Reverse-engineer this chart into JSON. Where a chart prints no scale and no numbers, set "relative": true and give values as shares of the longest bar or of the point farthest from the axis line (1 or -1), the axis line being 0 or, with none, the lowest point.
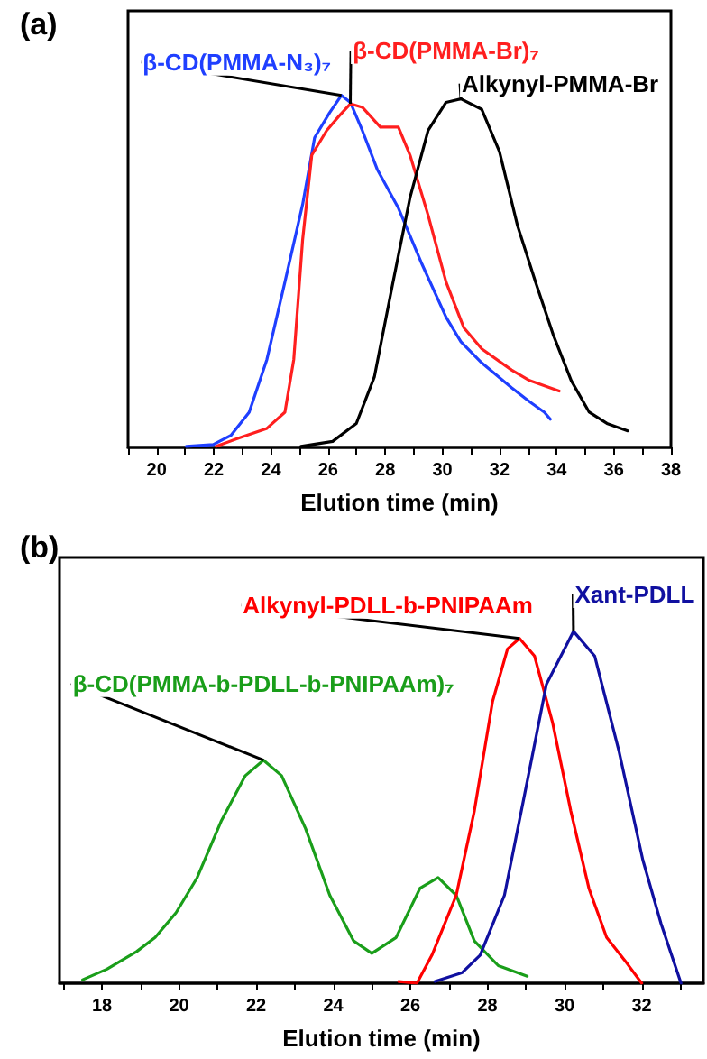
{
  "chart_data": [
    {
      "type": "line",
      "title": "(a)",
      "xlabel": "Elution time (min)",
      "relative": true,
      "xlim": [
        19,
        38
      ],
      "xticks": [
        {
          "value": 19,
          "label": null
        },
        20,
        {
          "value": 21,
          "label": null
        },
        22,
        {
          "value": 23,
          "label": null
        },
        24,
        {
          "value": 25,
          "label": null
        },
        26,
        {
          "value": 27,
          "label": null
        },
        28,
        {
          "value": 29,
          "label": null
        },
        30,
        {
          "value": 31,
          "label": null
        },
        32,
        {
          "value": 33,
          "label": null
        },
        34,
        {
          "value": 35,
          "label": null
        },
        36,
        {
          "value": 37,
          "label": null
        },
        38
      ],
      "grid": false,
      "marker": "none",
      "line_style": "solid",
      "series": [
        {
          "name": "β-CD(PMMA-N₃)₇",
          "color": "#1f3fff",
          "x": [
            21.04,
            21.98,
            22.6,
            23.24,
            23.86,
            24.49,
            25.11,
            25.53,
            26.05,
            26.47,
            26.78,
            27.2,
            27.72,
            28.46,
            29.29,
            30.13,
            30.65,
            31.38,
            32.42,
            33.05,
            33.57,
            33.78
          ],
          "values": [
            0.003,
            0.008,
            0.034,
            0.1,
            0.25,
            0.47,
            0.69,
            0.88,
            0.95,
            1,
            0.98,
            0.9,
            0.79,
            0.68,
            0.52,
            0.37,
            0.3,
            0.24,
            0.17,
            0.13,
            0.1,
            0.08
          ]
        },
        {
          "name": "β-CD(PMMA-Br)₇",
          "color": "#ff1f1f",
          "x": [
            22.09,
            22.82,
            23.86,
            24.49,
            24.8,
            25.11,
            25.43,
            25.95,
            26.37,
            26.78,
            27.2,
            27.83,
            28.46,
            28.87,
            29.5,
            30.13,
            30.75,
            31.38,
            32.42,
            33.05,
            34.09
          ],
          "values": [
            0.003,
            0.025,
            0.054,
            0.1,
            0.25,
            0.59,
            0.83,
            0.9,
            0.94,
            0.976,
            0.966,
            0.91,
            0.91,
            0.83,
            0.66,
            0.47,
            0.34,
            0.28,
            0.22,
            0.19,
            0.16
          ]
        },
        {
          "name": "Alkynyl-PMMA-Br",
          "color": "#000000",
          "x": [
            25.05,
            26.16,
            26.99,
            27.62,
            28.25,
            28.87,
            29.5,
            30.13,
            30.65,
            31.38,
            32.0,
            32.63,
            33.26,
            33.88,
            34.51,
            35.14,
            35.76,
            36.49
          ],
          "values": [
            0.003,
            0.017,
            0.068,
            0.2,
            0.46,
            0.71,
            0.9,
            0.98,
            0.99,
            0.96,
            0.84,
            0.63,
            0.47,
            0.32,
            0.19,
            0.1,
            0.068,
            0.047
          ]
        }
      ]
    },
    {
      "type": "line",
      "title": "(b)",
      "xlabel": "Elution time (min)",
      "relative": true,
      "xlim": [
        16.9,
        33.6
      ],
      "xticks": [
        {
          "value": 17,
          "label": null
        },
        18,
        {
          "value": 19,
          "label": null
        },
        20,
        {
          "value": 21,
          "label": null
        },
        22,
        {
          "value": 23,
          "label": null
        },
        24,
        {
          "value": 25,
          "label": null
        },
        26,
        {
          "value": 27,
          "label": null
        },
        28,
        {
          "value": 29,
          "label": null
        },
        30,
        {
          "value": 31,
          "label": null
        },
        32,
        {
          "value": 33,
          "label": null
        }
      ],
      "grid": false,
      "marker": "none",
      "line_style": "solid",
      "series": [
        {
          "name": "β-CD(PMMA-b-PDLL-b-PNIPAAm)₇",
          "color": "#1a9e1a",
          "x": [
            17.5,
            18.13,
            18.9,
            19.38,
            19.92,
            20.47,
            21.09,
            21.72,
            22.19,
            22.66,
            23.28,
            23.91,
            24.53,
            25.0,
            25.63,
            26.25,
            26.72,
            27.19,
            27.66,
            28.28,
            29.03
          ],
          "values": [
            0.01,
            0.04,
            0.09,
            0.13,
            0.2,
            0.3,
            0.46,
            0.59,
            0.634,
            0.59,
            0.44,
            0.25,
            0.12,
            0.085,
            0.13,
            0.27,
            0.3,
            0.25,
            0.12,
            0.05,
            0.02
          ]
        },
        {
          "name": "Alkynyl-PDLL-b-PNIPAAm",
          "color": "#ff0000",
          "x": [
            25.7,
            26.17,
            26.56,
            27.19,
            27.66,
            28.13,
            28.52,
            28.83,
            29.22,
            29.69,
            30.16,
            30.63,
            31.09,
            31.56,
            32.0
          ],
          "values": [
            0.005,
            0,
            0.08,
            0.25,
            0.49,
            0.8,
            0.95,
            0.98,
            0.93,
            0.74,
            0.49,
            0.27,
            0.13,
            0.065,
            0
          ]
        },
        {
          "name": "Xant-PDLL",
          "color": "#1010a0",
          "x": [
            26.64,
            27.34,
            27.81,
            28.44,
            29.06,
            29.53,
            30.23,
            30.78,
            31.41,
            32.03,
            32.5,
            33.02
          ],
          "values": [
            0.005,
            0.03,
            0.08,
            0.25,
            0.59,
            0.85,
            1,
            0.93,
            0.66,
            0.35,
            0.17,
            0
          ]
        }
      ]
    }
  ]
}
